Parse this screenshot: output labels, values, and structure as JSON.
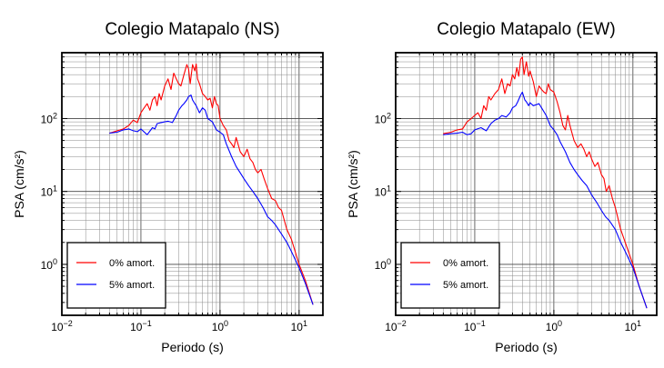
{
  "chart_data": [
    {
      "type": "line",
      "title": "Colegio Matapalo (NS)",
      "xlabel": "Periodo (s)",
      "ylabel": "PSA (cm/s²)",
      "xscale": "log",
      "yscale": "log",
      "xlim": [
        0.01,
        20
      ],
      "ylim": [
        0.2,
        800
      ],
      "xticks": [
        {
          "value": 0.01,
          "base": "10",
          "exp": "−2"
        },
        {
          "value": 0.1,
          "base": "10",
          "exp": "−1"
        },
        {
          "value": 1,
          "base": "10",
          "exp": "0"
        },
        {
          "value": 10,
          "base": "10",
          "exp": "1"
        }
      ],
      "yticks": [
        {
          "value": 1,
          "base": "10",
          "exp": "0"
        },
        {
          "value": 10,
          "base": "10",
          "exp": "1"
        },
        {
          "value": 100,
          "base": "10",
          "exp": "2"
        }
      ],
      "grid": true,
      "legend_position": "bottom-left",
      "series": [
        {
          "name": "0% amort.",
          "color": "#ff0000",
          "x": [
            0.04,
            0.05,
            0.06,
            0.07,
            0.08,
            0.09,
            0.1,
            0.11,
            0.12,
            0.13,
            0.14,
            0.15,
            0.16,
            0.17,
            0.18,
            0.2,
            0.22,
            0.24,
            0.26,
            0.28,
            0.3,
            0.32,
            0.35,
            0.38,
            0.4,
            0.42,
            0.45,
            0.48,
            0.5,
            0.52,
            0.55,
            0.6,
            0.65,
            0.7,
            0.75,
            0.8,
            0.85,
            0.9,
            0.95,
            1.0,
            1.1,
            1.2,
            1.3,
            1.4,
            1.5,
            1.6,
            1.8,
            2.0,
            2.2,
            2.4,
            2.6,
            2.8,
            3.0,
            3.3,
            3.6,
            4.0,
            4.5,
            5.0,
            5.5,
            6.0,
            7.0,
            8.0,
            10.0,
            12.0,
            15.0
          ],
          "y": [
            63,
            68,
            72,
            80,
            95,
            88,
            120,
            140,
            160,
            130,
            180,
            200,
            150,
            220,
            180,
            280,
            350,
            250,
            420,
            350,
            300,
            280,
            400,
            550,
            480,
            300,
            550,
            450,
            560,
            350,
            300,
            220,
            200,
            180,
            190,
            140,
            200,
            160,
            150,
            100,
            80,
            70,
            50,
            45,
            40,
            55,
            35,
            30,
            38,
            28,
            25,
            20,
            18,
            20,
            15,
            11,
            8,
            7.5,
            6,
            5.5,
            3,
            2.2,
            1.0,
            0.6,
            0.28
          ]
        },
        {
          "name": "5% amort.",
          "color": "#0000ff",
          "x": [
            0.04,
            0.05,
            0.06,
            0.07,
            0.08,
            0.09,
            0.1,
            0.12,
            0.14,
            0.15,
            0.16,
            0.18,
            0.2,
            0.22,
            0.25,
            0.28,
            0.3,
            0.33,
            0.35,
            0.38,
            0.4,
            0.43,
            0.45,
            0.48,
            0.5,
            0.55,
            0.6,
            0.65,
            0.7,
            0.8,
            0.9,
            1.0,
            1.1,
            1.2,
            1.4,
            1.6,
            1.8,
            2.0,
            2.3,
            2.6,
            3.0,
            3.5,
            4.0,
            4.5,
            5.0,
            6.0,
            7.0,
            8.0,
            10.0,
            12.0,
            15.0
          ],
          "y": [
            63,
            65,
            70,
            72,
            68,
            66,
            72,
            60,
            75,
            72,
            85,
            88,
            90,
            92,
            88,
            110,
            130,
            150,
            160,
            180,
            200,
            210,
            180,
            160,
            150,
            120,
            140,
            130,
            100,
            90,
            70,
            65,
            60,
            45,
            30,
            22,
            18,
            15,
            12,
            10,
            8,
            6,
            4.5,
            4,
            3.5,
            2.6,
            2.0,
            1.5,
            0.9,
            0.55,
            0.28
          ]
        }
      ]
    },
    {
      "type": "line",
      "title": "Colegio Matapalo (EW)",
      "xlabel": "Periodo (s)",
      "ylabel": "PSA (cm/s²)",
      "xscale": "log",
      "yscale": "log",
      "xlim": [
        0.01,
        20
      ],
      "ylim": [
        0.2,
        800
      ],
      "xticks": [
        {
          "value": 0.01,
          "base": "10",
          "exp": "−2"
        },
        {
          "value": 0.1,
          "base": "10",
          "exp": "−1"
        },
        {
          "value": 1,
          "base": "10",
          "exp": "0"
        },
        {
          "value": 10,
          "base": "10",
          "exp": "1"
        }
      ],
      "yticks": [
        {
          "value": 1,
          "base": "10",
          "exp": "0"
        },
        {
          "value": 10,
          "base": "10",
          "exp": "1"
        },
        {
          "value": 100,
          "base": "10",
          "exp": "2"
        }
      ],
      "grid": true,
      "legend_position": "bottom-left",
      "series": [
        {
          "name": "0% amort.",
          "color": "#ff0000",
          "x": [
            0.04,
            0.05,
            0.06,
            0.07,
            0.08,
            0.09,
            0.1,
            0.11,
            0.12,
            0.13,
            0.14,
            0.15,
            0.16,
            0.18,
            0.2,
            0.22,
            0.24,
            0.26,
            0.28,
            0.3,
            0.32,
            0.34,
            0.36,
            0.38,
            0.4,
            0.42,
            0.45,
            0.48,
            0.5,
            0.55,
            0.6,
            0.65,
            0.7,
            0.75,
            0.8,
            0.85,
            0.9,
            1.0,
            1.1,
            1.2,
            1.3,
            1.4,
            1.5,
            1.6,
            1.8,
            2.0,
            2.2,
            2.4,
            2.6,
            2.8,
            3.0,
            3.3,
            3.6,
            4.0,
            4.3,
            4.6,
            5.0,
            5.5,
            6.0,
            7.0,
            8.0,
            10.0,
            12.0,
            15.0
          ],
          "y": [
            62,
            65,
            70,
            72,
            90,
            100,
            110,
            120,
            100,
            150,
            130,
            200,
            180,
            220,
            250,
            350,
            220,
            300,
            280,
            400,
            350,
            500,
            380,
            650,
            700,
            400,
            600,
            380,
            450,
            320,
            200,
            280,
            250,
            230,
            220,
            300,
            250,
            230,
            170,
            120,
            80,
            70,
            110,
            80,
            50,
            40,
            45,
            38,
            30,
            35,
            28,
            22,
            25,
            17,
            15,
            10,
            12,
            8,
            6,
            3,
            2.0,
            1.0,
            0.5,
            0.25
          ]
        },
        {
          "name": "5% amort.",
          "color": "#0000ff",
          "x": [
            0.04,
            0.05,
            0.06,
            0.07,
            0.08,
            0.09,
            0.1,
            0.12,
            0.14,
            0.16,
            0.18,
            0.2,
            0.22,
            0.25,
            0.28,
            0.3,
            0.33,
            0.35,
            0.38,
            0.4,
            0.43,
            0.45,
            0.48,
            0.5,
            0.55,
            0.6,
            0.65,
            0.7,
            0.8,
            0.9,
            1.0,
            1.1,
            1.2,
            1.4,
            1.6,
            1.8,
            2.0,
            2.3,
            2.6,
            3.0,
            3.5,
            4.0,
            4.5,
            5.0,
            6.0,
            7.0,
            8.0,
            10.0,
            12.0,
            15.0
          ],
          "y": [
            60,
            62,
            63,
            65,
            60,
            62,
            70,
            75,
            68,
            85,
            95,
            100,
            110,
            105,
            120,
            140,
            150,
            170,
            210,
            230,
            180,
            170,
            150,
            165,
            150,
            155,
            160,
            140,
            110,
            80,
            70,
            60,
            48,
            35,
            25,
            20,
            17,
            14,
            12,
            9,
            7,
            5.5,
            4.5,
            4,
            3,
            2.0,
            1.5,
            0.9,
            0.5,
            0.25
          ]
        }
      ]
    }
  ]
}
